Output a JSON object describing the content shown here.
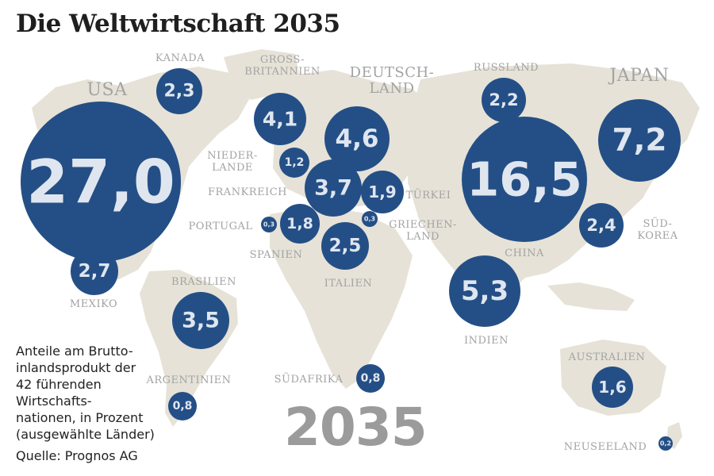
{
  "title": "Die Weltwirtschaft 2035",
  "caption": "Anteile am Brutto-\ninlandsprodukt der\n42 führenden\nWirtschafts-\nnationen, in Prozent\n(ausgewählte Länder)",
  "source": "Quelle: Prognos AG",
  "year": "2035",
  "colors": {
    "bubble": "#244f86",
    "bubble_value": "#dfe6ef",
    "land": "#e6e2d7",
    "label": "#a3a3a3"
  },
  "countries": [
    {
      "id": "usa",
      "name": "USA",
      "value": "27,0"
    },
    {
      "id": "kanada",
      "name": "KANADA",
      "value": "2,3"
    },
    {
      "id": "mexiko",
      "name": "MEXIKO",
      "value": "2,7"
    },
    {
      "id": "brasilien",
      "name": "BRASILIEN",
      "value": "3,5"
    },
    {
      "id": "argentinien",
      "name": "ARGENTINIEN",
      "value": "0,8"
    },
    {
      "id": "grossbritannien",
      "name": "GROSS-\nBRITANNIEN",
      "value": "4,1"
    },
    {
      "id": "niederlande",
      "name": "NIEDER-\nLANDE",
      "value": "1,2"
    },
    {
      "id": "frankreich",
      "name": "FRANKREICH",
      "value": "3,7"
    },
    {
      "id": "portugal",
      "name": "PORTUGAL",
      "value": "0,3"
    },
    {
      "id": "spanien",
      "name": "SPANIEN",
      "value": "1,8"
    },
    {
      "id": "deutschland",
      "name": "DEUTSCH-\nLAND",
      "value": "4,6"
    },
    {
      "id": "tuerkei",
      "name": "TÜRKEI",
      "value": "1,9"
    },
    {
      "id": "griechenland",
      "name": "GRIECHEN-\nLAND",
      "value": "0,3"
    },
    {
      "id": "italien",
      "name": "ITALIEN",
      "value": "2,5"
    },
    {
      "id": "suedafrika",
      "name": "SÜDAFRIKA",
      "value": "0,8"
    },
    {
      "id": "russland",
      "name": "RUSSLAND",
      "value": "2,2"
    },
    {
      "id": "china",
      "name": "CHINA",
      "value": "16,5"
    },
    {
      "id": "indien",
      "name": "INDIEN",
      "value": "5,3"
    },
    {
      "id": "japan",
      "name": "JAPAN",
      "value": "7,2"
    },
    {
      "id": "suedkorea",
      "name": "SÜD-\nKOREA",
      "value": "2,4"
    },
    {
      "id": "australien",
      "name": "AUSTRALIEN",
      "value": "1,6"
    },
    {
      "id": "neuseeland",
      "name": "NEUSEELAND",
      "value": "0,2"
    }
  ]
}
